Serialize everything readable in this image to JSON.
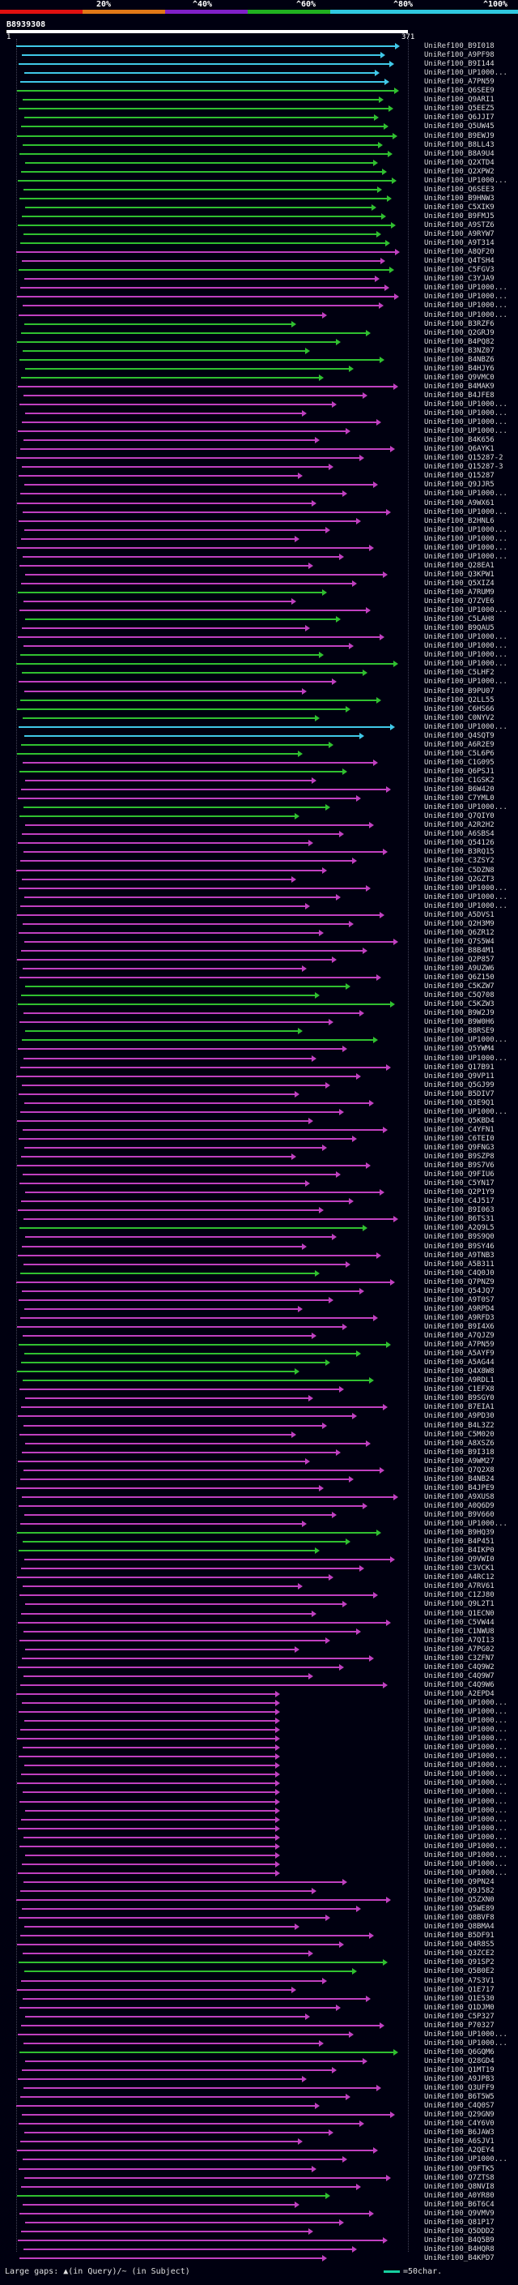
{
  "scale": {
    "labels": [
      "20%",
      "^40%",
      "^60%",
      "^80%",
      "^100%"
    ],
    "colors": [
      "#e01010",
      "#e07818",
      "#8020c8",
      "#20b020",
      "#30c8e0"
    ]
  },
  "query": {
    "id": "B8939308",
    "start": "1",
    "end": "371"
  },
  "colors": {
    "cyan": "#40c8e8",
    "green": "#30c030",
    "magenta": "#c040c0",
    "white": "#e8e8e8"
  },
  "hits": [
    {
      "acc": "UniRef100_B9I018",
      "c": "cyan"
    },
    {
      "acc": "UniRef100_A9PF98",
      "c": "cyan"
    },
    {
      "acc": "UniRef100_B9I144",
      "c": "cyan"
    },
    {
      "acc": "UniRef100_UP1000...",
      "c": "cyan"
    },
    {
      "acc": "UniRef100_A7PN59",
      "c": "cyan"
    },
    {
      "acc": "UniRef100_Q6SEE9",
      "c": "green"
    },
    {
      "acc": "UniRef100_Q9ARI1",
      "c": "green"
    },
    {
      "acc": "UniRef100_Q5EEZ5",
      "c": "green"
    },
    {
      "acc": "UniRef100_Q6JJI7",
      "c": "green"
    },
    {
      "acc": "UniRef100_Q5UW45",
      "c": "green"
    },
    {
      "acc": "UniRef100_B9EWJ9",
      "c": "green"
    },
    {
      "acc": "UniRef100_B8LL43",
      "c": "green"
    },
    {
      "acc": "UniRef100_B8A9U4",
      "c": "green"
    },
    {
      "acc": "UniRef100_Q2XTD4",
      "c": "green"
    },
    {
      "acc": "UniRef100_Q2XPW2",
      "c": "green"
    },
    {
      "acc": "UniRef100_UP1000...",
      "c": "green"
    },
    {
      "acc": "UniRef100_Q6SEE3",
      "c": "green"
    },
    {
      "acc": "UniRef100_B9HNW3",
      "c": "green"
    },
    {
      "acc": "UniRef100_C5XIK9",
      "c": "green"
    },
    {
      "acc": "UniRef100_B9FMJ5",
      "c": "green"
    },
    {
      "acc": "UniRef100_A9STZ6",
      "c": "green"
    },
    {
      "acc": "UniRef100_A9RYW7",
      "c": "green"
    },
    {
      "acc": "UniRef100_A9T314",
      "c": "green"
    },
    {
      "acc": "UniRef100_A8QF20",
      "c": "magenta"
    },
    {
      "acc": "UniRef100_Q4TSH4",
      "c": "magenta"
    },
    {
      "acc": "UniRef100_C5FGV3",
      "c": "green"
    },
    {
      "acc": "UniRef100_C3YJA9",
      "c": "magenta"
    },
    {
      "acc": "UniRef100_UP1000...",
      "c": "magenta"
    },
    {
      "acc": "UniRef100_UP1000...",
      "c": "magenta"
    },
    {
      "acc": "UniRef100_UP1000...",
      "c": "magenta"
    },
    {
      "acc": "UniRef100_UP1000...",
      "c": "magenta"
    },
    {
      "acc": "UniRef100_B3RZF6",
      "c": "green"
    },
    {
      "acc": "UniRef100_Q2GRJ9",
      "c": "green"
    },
    {
      "acc": "UniRef100_B4PQ82",
      "c": "green"
    },
    {
      "acc": "UniRef100_B3NZ07",
      "c": "green"
    },
    {
      "acc": "UniRef100_B4NBZ6",
      "c": "green"
    },
    {
      "acc": "UniRef100_B4HJY6",
      "c": "green"
    },
    {
      "acc": "UniRef100_Q9VMC0",
      "c": "green"
    },
    {
      "acc": "UniRef100_B4MAK9",
      "c": "magenta"
    },
    {
      "acc": "UniRef100_B4JFE8",
      "c": "magenta"
    },
    {
      "acc": "UniRef100_UP1000...",
      "c": "magenta"
    },
    {
      "acc": "UniRef100_UP1000...",
      "c": "magenta"
    },
    {
      "acc": "UniRef100_UP1000...",
      "c": "magenta"
    },
    {
      "acc": "UniRef100_UP1000...",
      "c": "magenta"
    },
    {
      "acc": "UniRef100_B4K656",
      "c": "magenta"
    },
    {
      "acc": "UniRef100_Q6AYK1",
      "c": "magenta"
    },
    {
      "acc": "UniRef100_Q15287-2",
      "c": "magenta"
    },
    {
      "acc": "UniRef100_Q15287-3",
      "c": "magenta"
    },
    {
      "acc": "UniRef100_Q15287",
      "c": "magenta"
    },
    {
      "acc": "UniRef100_Q9JJR5",
      "c": "magenta"
    },
    {
      "acc": "UniRef100_UP1000...",
      "c": "magenta"
    },
    {
      "acc": "UniRef100_A9WX61",
      "c": "magenta"
    },
    {
      "acc": "UniRef100_UP1000...",
      "c": "magenta"
    },
    {
      "acc": "UniRef100_B2HNL6",
      "c": "magenta"
    },
    {
      "acc": "UniRef100_UP1000...",
      "c": "magenta"
    },
    {
      "acc": "UniRef100_UP1000...",
      "c": "magenta"
    },
    {
      "acc": "UniRef100_UP1000...",
      "c": "magenta"
    },
    {
      "acc": "UniRef100_UP1000...",
      "c": "magenta"
    },
    {
      "acc": "UniRef100_Q28EA1",
      "c": "magenta"
    },
    {
      "acc": "UniRef100_Q3KPW1",
      "c": "magenta"
    },
    {
      "acc": "UniRef100_Q5XIZ4",
      "c": "magenta"
    },
    {
      "acc": "UniRef100_A7RUM9",
      "c": "green"
    },
    {
      "acc": "UniRef100_Q7ZVE6",
      "c": "magenta"
    },
    {
      "acc": "UniRef100_UP1000...",
      "c": "magenta"
    },
    {
      "acc": "UniRef100_C5LAH8",
      "c": "green"
    },
    {
      "acc": "UniRef100_B9QAU5",
      "c": "magenta"
    },
    {
      "acc": "UniRef100_UP1000...",
      "c": "magenta"
    },
    {
      "acc": "UniRef100_UP1000...",
      "c": "magenta"
    },
    {
      "acc": "UniRef100_UP1000...",
      "c": "green"
    },
    {
      "acc": "UniRef100_UP1000...",
      "c": "green"
    },
    {
      "acc": "UniRef100_C5LHF2",
      "c": "green"
    },
    {
      "acc": "UniRef100_UP1000...",
      "c": "magenta"
    },
    {
      "acc": "UniRef100_B9PU07",
      "c": "magenta"
    },
    {
      "acc": "UniRef100_Q2LL55",
      "c": "green"
    },
    {
      "acc": "UniRef100_C6HS66",
      "c": "green"
    },
    {
      "acc": "UniRef100_C0NYV2",
      "c": "green"
    },
    {
      "acc": "UniRef100_UP1000...",
      "c": "cyan"
    },
    {
      "acc": "UniRef100_Q4SQT9",
      "c": "cyan"
    },
    {
      "acc": "UniRef100_A6R2E9",
      "c": "green"
    },
    {
      "acc": "UniRef100_C5L6P6",
      "c": "green"
    },
    {
      "acc": "UniRef100_C1G095",
      "c": "magenta"
    },
    {
      "acc": "UniRef100_Q6PSJ1",
      "c": "green"
    },
    {
      "acc": "UniRef100_C1GSK2",
      "c": "magenta"
    },
    {
      "acc": "UniRef100_B6W420",
      "c": "magenta"
    },
    {
      "acc": "UniRef100_C7YML0",
      "c": "magenta"
    },
    {
      "acc": "UniRef100_UP1000...",
      "c": "green"
    },
    {
      "acc": "UniRef100_Q7QIY0",
      "c": "green"
    },
    {
      "acc": "UniRef100_A2R2H2",
      "c": "magenta"
    },
    {
      "acc": "UniRef100_A6SBS4",
      "c": "magenta"
    },
    {
      "acc": "UniRef100_Q54126",
      "c": "magenta"
    },
    {
      "acc": "UniRef100_B3RQ15",
      "c": "magenta"
    },
    {
      "acc": "UniRef100_C3ZSY2",
      "c": "magenta"
    },
    {
      "acc": "UniRef100_C5DZN8",
      "c": "magenta"
    },
    {
      "acc": "UniRef100_Q2GZT3",
      "c": "magenta"
    },
    {
      "acc": "UniRef100_UP1000...",
      "c": "magenta"
    },
    {
      "acc": "UniRef100_UP1000...",
      "c": "magenta"
    },
    {
      "acc": "UniRef100_UP1000...",
      "c": "magenta"
    },
    {
      "acc": "UniRef100_A5DVS1",
      "c": "magenta"
    },
    {
      "acc": "UniRef100_Q2H3M9",
      "c": "magenta"
    },
    {
      "acc": "UniRef100_Q6ZR12",
      "c": "magenta"
    },
    {
      "acc": "UniRef100_Q7S5W4",
      "c": "magenta"
    },
    {
      "acc": "UniRef100_B8B4M1",
      "c": "magenta"
    },
    {
      "acc": "UniRef100_Q2P857",
      "c": "magenta"
    },
    {
      "acc": "UniRef100_A9UZW6",
      "c": "magenta"
    },
    {
      "acc": "UniRef100_Q6Z150",
      "c": "magenta"
    },
    {
      "acc": "UniRef100_C5KZW7",
      "c": "green"
    },
    {
      "acc": "UniRef100_C5Q708",
      "c": "green"
    },
    {
      "acc": "UniRef100_C5KZW3",
      "c": "green"
    },
    {
      "acc": "UniRef100_B9W2J9",
      "c": "magenta"
    },
    {
      "acc": "UniRef100_B9W0H6",
      "c": "magenta"
    },
    {
      "acc": "UniRef100_B8RSE9",
      "c": "green"
    },
    {
      "acc": "UniRef100_UP1000...",
      "c": "green"
    },
    {
      "acc": "UniRef100_Q5YWM4",
      "c": "magenta"
    },
    {
      "acc": "UniRef100_UP1000...",
      "c": "magenta"
    },
    {
      "acc": "UniRef100_Q17B91",
      "c": "magenta"
    },
    {
      "acc": "UniRef100_Q9VP11",
      "c": "magenta"
    },
    {
      "acc": "UniRef100_Q5GJ99",
      "c": "magenta"
    },
    {
      "acc": "UniRef100_B5DIV7",
      "c": "magenta"
    },
    {
      "acc": "UniRef100_Q3E9Q1",
      "c": "magenta"
    },
    {
      "acc": "UniRef100_UP1000...",
      "c": "magenta"
    },
    {
      "acc": "UniRef100_Q5KBD4",
      "c": "magenta"
    },
    {
      "acc": "UniRef100_C4YFN1",
      "c": "magenta"
    },
    {
      "acc": "UniRef100_C6TEI0",
      "c": "magenta"
    },
    {
      "acc": "UniRef100_Q9FNG3",
      "c": "magenta"
    },
    {
      "acc": "UniRef100_B9SZP8",
      "c": "magenta"
    },
    {
      "acc": "UniRef100_B9S7V6",
      "c": "magenta"
    },
    {
      "acc": "UniRef100_Q9FIU6",
      "c": "magenta"
    },
    {
      "acc": "UniRef100_C5YN17",
      "c": "magenta"
    },
    {
      "acc": "UniRef100_Q2P1Y9",
      "c": "magenta"
    },
    {
      "acc": "UniRef100_C4J517",
      "c": "magenta"
    },
    {
      "acc": "UniRef100_B9I063",
      "c": "magenta"
    },
    {
      "acc": "UniRef100_B6TS31",
      "c": "magenta"
    },
    {
      "acc": "UniRef100_A2Q9L5",
      "c": "green"
    },
    {
      "acc": "UniRef100_B9S9Q0",
      "c": "magenta"
    },
    {
      "acc": "UniRef100_B9SY46",
      "c": "magenta"
    },
    {
      "acc": "UniRef100_A9TNB3",
      "c": "magenta"
    },
    {
      "acc": "UniRef100_A5B311",
      "c": "magenta"
    },
    {
      "acc": "UniRef100_C4Q0J0",
      "c": "green"
    },
    {
      "acc": "UniRef100_Q7PNZ9",
      "c": "magenta"
    },
    {
      "acc": "UniRef100_Q54JQ7",
      "c": "magenta"
    },
    {
      "acc": "UniRef100_A9T0S7",
      "c": "magenta"
    },
    {
      "acc": "UniRef100_A9RPD4",
      "c": "magenta"
    },
    {
      "acc": "UniRef100_A9RFD3",
      "c": "magenta"
    },
    {
      "acc": "UniRef100_B9I4X6",
      "c": "magenta"
    },
    {
      "acc": "UniRef100_A7QJZ9",
      "c": "magenta"
    },
    {
      "acc": "UniRef100_A7PN59",
      "c": "green"
    },
    {
      "acc": "UniRef100_A5AYF9",
      "c": "green"
    },
    {
      "acc": "UniRef100_A5AG44",
      "c": "green"
    },
    {
      "acc": "UniRef100_Q4X8W8",
      "c": "green"
    },
    {
      "acc": "UniRef100_A9RDL1",
      "c": "green"
    },
    {
      "acc": "UniRef100_C1EFX8",
      "c": "magenta"
    },
    {
      "acc": "UniRef100_B9SGY0",
      "c": "magenta"
    },
    {
      "acc": "UniRef100_B7EIA1",
      "c": "magenta"
    },
    {
      "acc": "UniRef100_A9PD30",
      "c": "magenta"
    },
    {
      "acc": "UniRef100_B4L3Z2",
      "c": "magenta"
    },
    {
      "acc": "UniRef100_C5M020",
      "c": "magenta"
    },
    {
      "acc": "UniRef100_A8XSZ6",
      "c": "magenta"
    },
    {
      "acc": "UniRef100_B9I318",
      "c": "magenta"
    },
    {
      "acc": "UniRef100_A9WM27",
      "c": "magenta"
    },
    {
      "acc": "UniRef100_Q7Q2X8",
      "c": "magenta"
    },
    {
      "acc": "UniRef100_B4NB24",
      "c": "magenta"
    },
    {
      "acc": "UniRef100_B4JPE9",
      "c": "magenta"
    },
    {
      "acc": "UniRef100_A9XUS8",
      "c": "magenta"
    },
    {
      "acc": "UniRef100_A0Q6D9",
      "c": "magenta"
    },
    {
      "acc": "UniRef100_B9V660",
      "c": "magenta"
    },
    {
      "acc": "UniRef100_UP1000...",
      "c": "magenta"
    },
    {
      "acc": "UniRef100_B9HQ39",
      "c": "green"
    },
    {
      "acc": "UniRef100_B4P451",
      "c": "green"
    },
    {
      "acc": "UniRef100_B4IKP0",
      "c": "green"
    },
    {
      "acc": "UniRef100_Q9VWI0",
      "c": "magenta"
    },
    {
      "acc": "UniRef100_C3VCK1",
      "c": "magenta"
    },
    {
      "acc": "UniRef100_A4RC12",
      "c": "magenta"
    },
    {
      "acc": "UniRef100_A7RV61",
      "c": "magenta"
    },
    {
      "acc": "UniRef100_C1ZJ80",
      "c": "magenta"
    },
    {
      "acc": "UniRef100_Q9L2T1",
      "c": "magenta"
    },
    {
      "acc": "UniRef100_Q1ECN0",
      "c": "magenta"
    },
    {
      "acc": "UniRef100_C5VW44",
      "c": "magenta"
    },
    {
      "acc": "UniRef100_C1NWU8",
      "c": "magenta"
    },
    {
      "acc": "UniRef100_A7QI13",
      "c": "magenta"
    },
    {
      "acc": "UniRef100_A7PG02",
      "c": "magenta"
    },
    {
      "acc": "UniRef100_C3ZFN7",
      "c": "magenta"
    },
    {
      "acc": "UniRef100_C4Q9W2",
      "c": "magenta"
    },
    {
      "acc": "UniRef100_C4Q9W7",
      "c": "magenta"
    },
    {
      "acc": "UniRef100_C4Q9W6",
      "c": "magenta"
    },
    {
      "acc": "UniRef100_A2EPD4",
      "c": "magenta"
    },
    {
      "acc": "UniRef100_UP1000...",
      "c": "magenta"
    },
    {
      "acc": "UniRef100_UP1000...",
      "c": "magenta"
    },
    {
      "acc": "UniRef100_UP1000...",
      "c": "magenta"
    },
    {
      "acc": "UniRef100_UP1000...",
      "c": "magenta"
    },
    {
      "acc": "UniRef100_UP1000...",
      "c": "magenta"
    },
    {
      "acc": "UniRef100_UP1000...",
      "c": "magenta"
    },
    {
      "acc": "UniRef100_UP1000...",
      "c": "magenta"
    },
    {
      "acc": "UniRef100_UP1000...",
      "c": "magenta"
    },
    {
      "acc": "UniRef100_UP1000...",
      "c": "magenta"
    },
    {
      "acc": "UniRef100_UP1000...",
      "c": "magenta"
    },
    {
      "acc": "UniRef100_UP1000...",
      "c": "magenta"
    },
    {
      "acc": "UniRef100_UP1000...",
      "c": "magenta"
    },
    {
      "acc": "UniRef100_UP1000...",
      "c": "magenta"
    },
    {
      "acc": "UniRef100_UP1000...",
      "c": "magenta"
    },
    {
      "acc": "UniRef100_UP1000...",
      "c": "magenta"
    },
    {
      "acc": "UniRef100_UP1000...",
      "c": "magenta"
    },
    {
      "acc": "UniRef100_UP1000...",
      "c": "magenta"
    },
    {
      "acc": "UniRef100_UP1000...",
      "c": "magenta"
    },
    {
      "acc": "UniRef100_UP1000...",
      "c": "magenta"
    },
    {
      "acc": "UniRef100_UP1000...",
      "c": "magenta"
    },
    {
      "acc": "UniRef100_Q9PN24",
      "c": "magenta"
    },
    {
      "acc": "UniRef100_Q9J582",
      "c": "magenta"
    },
    {
      "acc": "UniRef100_Q5ZXN0",
      "c": "magenta"
    },
    {
      "acc": "UniRef100_Q5WE89",
      "c": "magenta"
    },
    {
      "acc": "UniRef100_Q8BVF8",
      "c": "magenta"
    },
    {
      "acc": "UniRef100_Q8BMA4",
      "c": "magenta"
    },
    {
      "acc": "UniRef100_B5DF91",
      "c": "magenta"
    },
    {
      "acc": "UniRef100_Q4R8S5",
      "c": "magenta"
    },
    {
      "acc": "UniRef100_Q3ZCE2",
      "c": "magenta"
    },
    {
      "acc": "UniRef100_Q91SP2",
      "c": "green"
    },
    {
      "acc": "UniRef100_Q5B0E2",
      "c": "green"
    },
    {
      "acc": "UniRef100_A7S3V1",
      "c": "magenta"
    },
    {
      "acc": "UniRef100_Q1E717",
      "c": "magenta"
    },
    {
      "acc": "UniRef100_Q1E530",
      "c": "magenta"
    },
    {
      "acc": "UniRef100_Q1DJM0",
      "c": "magenta"
    },
    {
      "acc": "UniRef100_C5P327",
      "c": "magenta"
    },
    {
      "acc": "UniRef100_P70327",
      "c": "magenta"
    },
    {
      "acc": "UniRef100_UP1000...",
      "c": "magenta"
    },
    {
      "acc": "UniRef100_UP1000...",
      "c": "magenta"
    },
    {
      "acc": "UniRef100_Q6GQM6",
      "c": "green"
    },
    {
      "acc": "UniRef100_Q28GD4",
      "c": "magenta"
    },
    {
      "acc": "UniRef100_Q1MT19",
      "c": "magenta"
    },
    {
      "acc": "UniRef100_A9JPB3",
      "c": "magenta"
    },
    {
      "acc": "UniRef100_Q3UFF9",
      "c": "magenta"
    },
    {
      "acc": "UniRef100_B6T5W5",
      "c": "magenta"
    },
    {
      "acc": "UniRef100_C4Q0S7",
      "c": "magenta"
    },
    {
      "acc": "UniRef100_Q29GN9",
      "c": "magenta"
    },
    {
      "acc": "UniRef100_C4Y6V0",
      "c": "magenta"
    },
    {
      "acc": "UniRef100_B6JAW3",
      "c": "magenta"
    },
    {
      "acc": "UniRef100_A6SJV1",
      "c": "magenta"
    },
    {
      "acc": "UniRef100_A2QEY4",
      "c": "magenta"
    },
    {
      "acc": "UniRef100_UP1000...",
      "c": "magenta"
    },
    {
      "acc": "UniRef100_Q9FTK5",
      "c": "magenta"
    },
    {
      "acc": "UniRef100_Q7ZTS8",
      "c": "magenta"
    },
    {
      "acc": "UniRef100_Q8NVI8",
      "c": "magenta"
    },
    {
      "acc": "UniRef100_A0YR80",
      "c": "green"
    },
    {
      "acc": "UniRef100_B6T6C4",
      "c": "magenta"
    },
    {
      "acc": "UniRef100_Q9VMV9",
      "c": "magenta"
    },
    {
      "acc": "UniRef100_Q81P17",
      "c": "magenta"
    },
    {
      "acc": "UniRef100_Q5DDD2",
      "c": "magenta"
    },
    {
      "acc": "UniRef100_B4Q5B9",
      "c": "magenta"
    },
    {
      "acc": "UniRef100_B4HQR8",
      "c": "magenta"
    },
    {
      "acc": "UniRef100_B4KPD7",
      "c": "magenta"
    }
  ],
  "legend": {
    "left": "Large gaps: ▲(in Query)/~ (in Subject)",
    "right": "=50char."
  }
}
